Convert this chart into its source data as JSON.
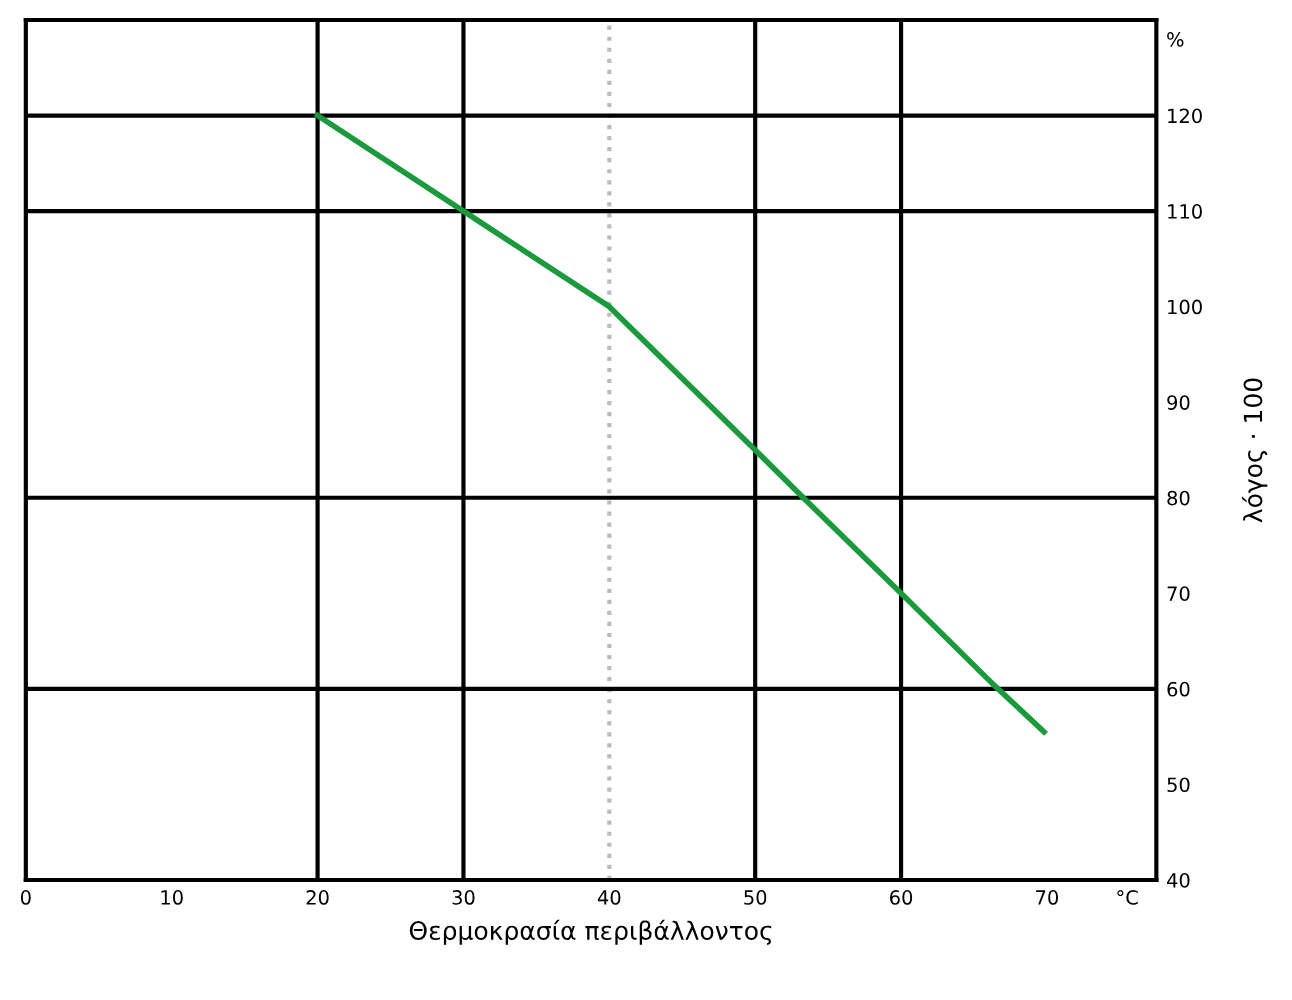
{
  "chart_data": {
    "type": "line",
    "xlabel": "Θερμοκρασία περιβάλλοντος",
    "ylabel": "λόγος · 100",
    "x": [
      20,
      30,
      40,
      50,
      53.3,
      60,
      66.3,
      69.8
    ],
    "series": [
      {
        "color": "#1a9a3c",
        "values": [
          120,
          110,
          100,
          85,
          80,
          70,
          60.5,
          55.5
        ]
      }
    ],
    "xlim": [
      0,
      77.5
    ],
    "xticks": [
      0,
      10,
      20,
      30,
      40,
      50,
      60,
      70,
      {
        "value": 75.5,
        "label": "°C"
      }
    ],
    "ylim": [
      40,
      130
    ],
    "yticks": [
      40,
      50,
      60,
      70,
      80,
      90,
      100,
      110,
      120,
      {
        "value": 128,
        "label": "%"
      }
    ],
    "ref_lines": [
      {
        "axis": "x",
        "value": 20,
        "color": "#000000"
      },
      {
        "axis": "x",
        "value": 30,
        "color": "#000000"
      },
      {
        "axis": "x",
        "value": 40,
        "color": "#bbbbbb",
        "line_style": "dotted"
      },
      {
        "axis": "x",
        "value": 50,
        "color": "#000000"
      },
      {
        "axis": "x",
        "value": 60,
        "color": "#000000"
      },
      {
        "axis": "y",
        "value": 120,
        "color": "#000000"
      },
      {
        "axis": "y",
        "value": 110,
        "color": "#000000"
      },
      {
        "axis": "y",
        "value": 80,
        "color": "#000000"
      },
      {
        "axis": "y",
        "value": 60,
        "color": "#000000"
      }
    ],
    "grid": false,
    "legend": false
  }
}
